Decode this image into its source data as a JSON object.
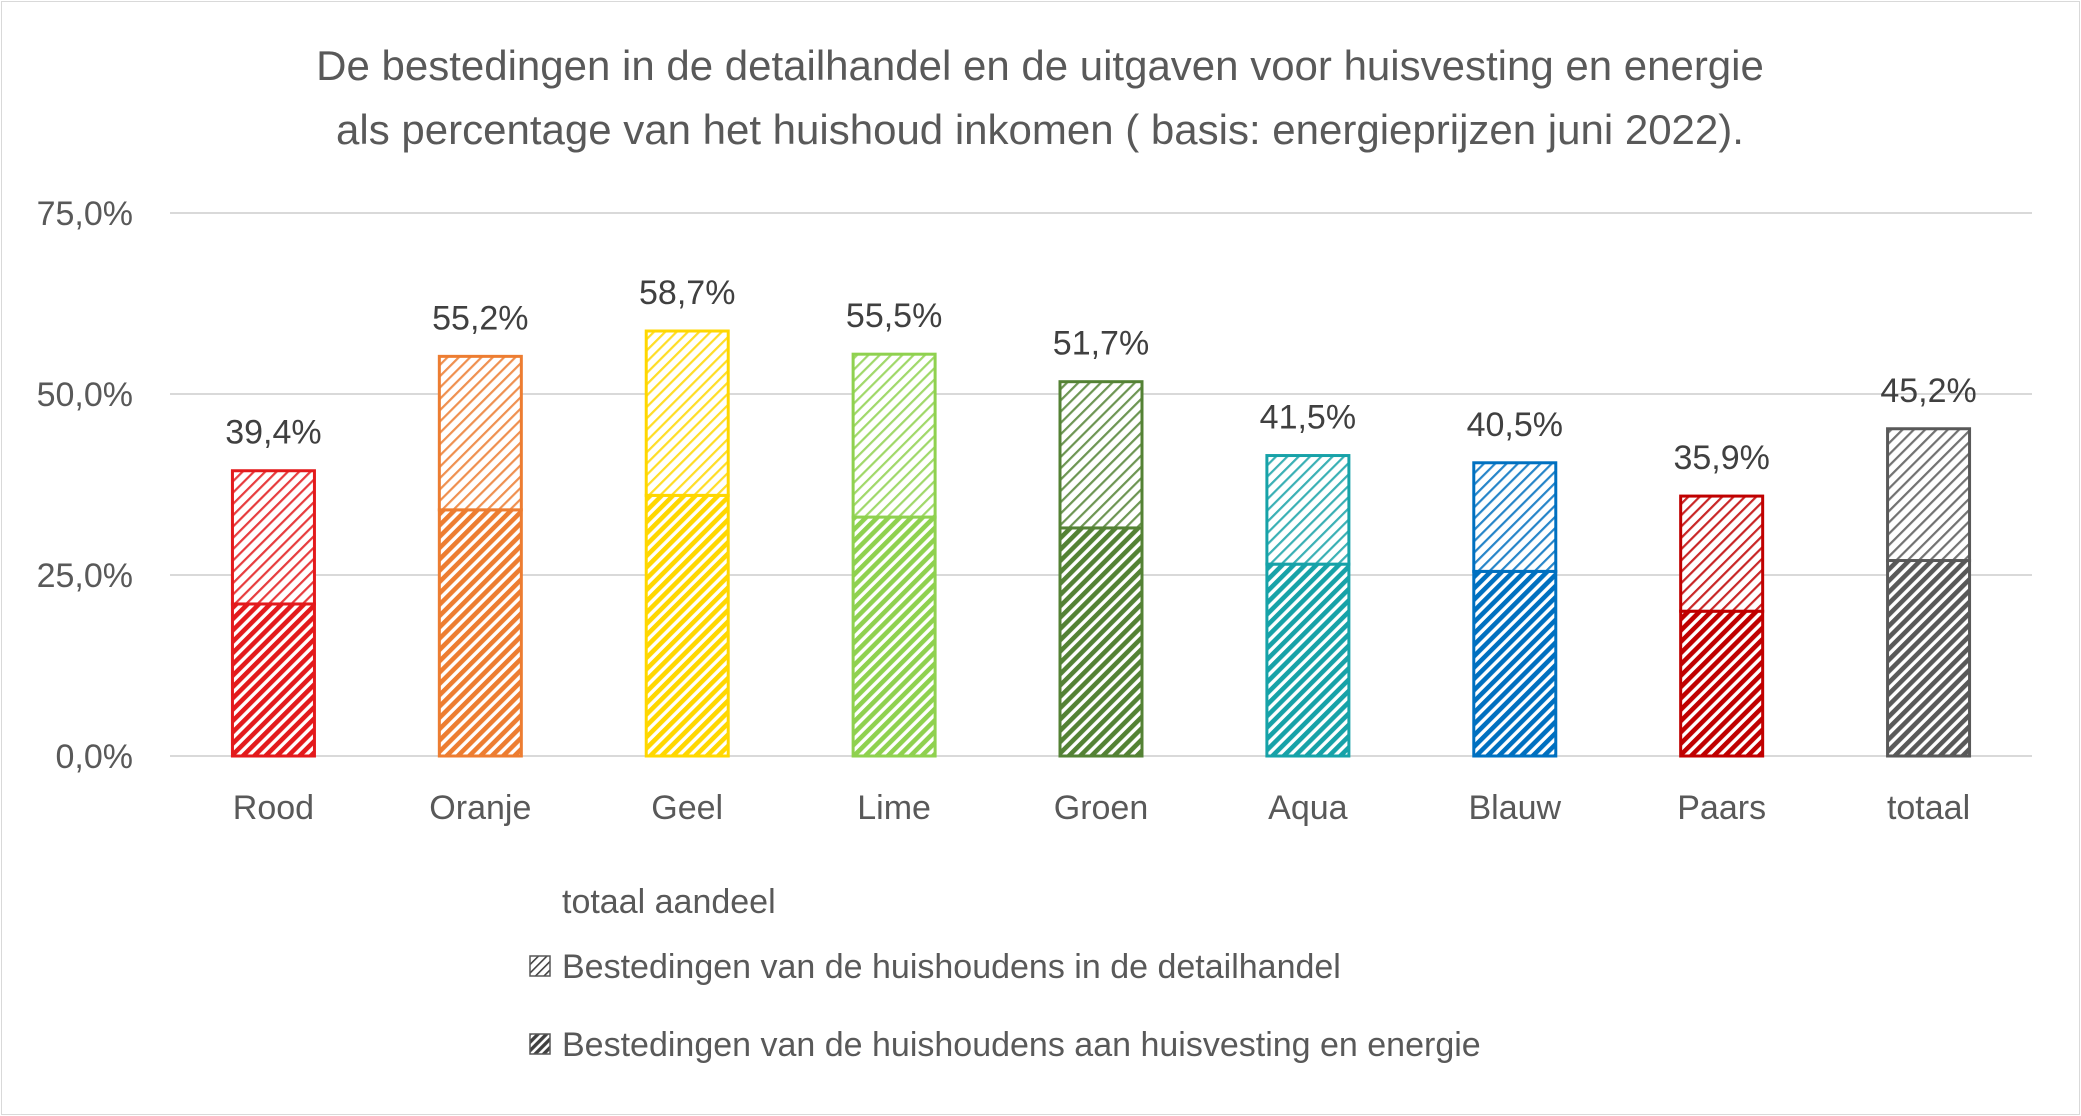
{
  "chart_data": {
    "type": "bar",
    "stacked": true,
    "title_lines": [
      "De bestedingen in de detailhandel en de uitgaven voor huisvesting en energie",
      "als percentage van het huishoud inkomen ( basis: energieprijzen juni 2022)."
    ],
    "categories": [
      "Rood",
      "Oranje",
      "Geel",
      "Lime",
      "Groen",
      "Aqua",
      "Blauw",
      "Paars",
      "totaal"
    ],
    "category_colors": [
      "#e31a1c",
      "#ed7d31",
      "#ffd700",
      "#8fd14f",
      "#548235",
      "#17a2a8",
      "#0070c0",
      "#c00000",
      "#595959"
    ],
    "series": [
      {
        "name": "Bestedingen van de huishoudens aan huisvesting en energie",
        "pattern": "dark-diagonal",
        "values": [
          21.0,
          34.0,
          36.0,
          33.0,
          31.5,
          26.5,
          25.5,
          20.0,
          27.0
        ]
      },
      {
        "name": "Bestedingen van de huishoudens in de detailhandel",
        "pattern": "light-diagonal",
        "values": [
          18.4,
          21.2,
          22.7,
          22.5,
          20.2,
          15.0,
          15.0,
          15.9,
          18.2
        ]
      }
    ],
    "total_labels": [
      "39,4%",
      "55,2%",
      "58,7%",
      "55,5%",
      "51,7%",
      "41,5%",
      "40,5%",
      "35,9%",
      "45,2%"
    ],
    "totals": [
      39.4,
      55.2,
      58.7,
      55.5,
      51.7,
      41.5,
      40.5,
      35.9,
      45.2
    ],
    "ylim": [
      0,
      75
    ],
    "yticks": [
      0,
      25,
      50,
      75
    ],
    "ytick_labels": [
      "0,0%",
      "25,0%",
      "50,0%",
      "75,0%"
    ],
    "grid": true,
    "legend_title": "totaal aandeel",
    "legend_entries": [
      "Bestedingen van de huishoudens in de detailhandel",
      "Bestedingen van de huishoudens aan huisvesting en energie"
    ],
    "legend_position": "bottom",
    "gridline_color": "#d9d9d9"
  }
}
